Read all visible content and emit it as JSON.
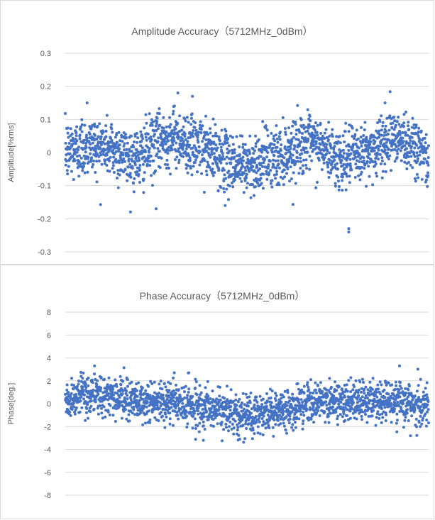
{
  "chart_data": [
    {
      "type": "scatter",
      "title": "Amplitude Accuracy（5712MHz_0dBm）",
      "xlabel": "",
      "ylabel": "Amplitude[%rms]",
      "ylim": [
        -0.3,
        0.3
      ],
      "yticks": [
        "0.3",
        "0.2",
        "0.1",
        "0",
        "-0.1",
        "-0.2",
        "-0.3"
      ],
      "ytick_values": [
        0.3,
        0.2,
        0.1,
        0,
        -0.1,
        -0.2,
        -0.3
      ],
      "grid": true,
      "legend": "none",
      "color": "#4472c4",
      "point_count": 2000,
      "series": [
        {
          "envelope_x": [
            0,
            0.05,
            0.1,
            0.15,
            0.2,
            0.25,
            0.3,
            0.35,
            0.4,
            0.45,
            0.5,
            0.55,
            0.6,
            0.65,
            0.7,
            0.75,
            0.8,
            0.85,
            0.9,
            0.95,
            1.0
          ],
          "envelope_center": [
            0.0,
            0.02,
            0.02,
            0.0,
            -0.02,
            0.03,
            0.05,
            0.02,
            0.0,
            -0.03,
            -0.04,
            -0.02,
            -0.01,
            0.03,
            0.02,
            -0.02,
            -0.01,
            0.01,
            0.05,
            0.03,
            -0.02
          ],
          "spread": 0.05,
          "extremes": [
            {
              "x": 0.06,
              "y": 0.15
            },
            {
              "x": 0.31,
              "y": 0.18
            },
            {
              "x": 0.35,
              "y": 0.17
            },
            {
              "x": 0.25,
              "y": -0.17
            },
            {
              "x": 0.44,
              "y": -0.16
            },
            {
              "x": 0.78,
              "y": -0.24
            },
            {
              "x": 0.78,
              "y": -0.23
            },
            {
              "x": 0.88,
              "y": 0.15
            }
          ]
        }
      ]
    },
    {
      "type": "scatter",
      "title": "Phase Accuracy（5712MHz_0dBm）",
      "xlabel": "",
      "ylabel": "Phase[deg.]",
      "ylim": [
        -8,
        8
      ],
      "yticks": [
        "8",
        "6",
        "4",
        "2",
        "0",
        "-2",
        "-4",
        "-6",
        "-8"
      ],
      "ytick_values": [
        8,
        6,
        4,
        2,
        0,
        -2,
        -4,
        -6,
        -8
      ],
      "grid": true,
      "legend": "none",
      "color": "#4472c4",
      "point_count": 2000,
      "series": [
        {
          "envelope_x": [
            0,
            0.05,
            0.1,
            0.15,
            0.2,
            0.25,
            0.3,
            0.35,
            0.4,
            0.45,
            0.5,
            0.55,
            0.6,
            0.65,
            0.7,
            0.75,
            0.8,
            0.85,
            0.9,
            0.95,
            1.0
          ],
          "envelope_center": [
            0.3,
            0.6,
            0.8,
            0.5,
            0.2,
            0.0,
            0.1,
            -0.2,
            -0.4,
            -0.7,
            -0.9,
            -0.8,
            -0.5,
            0.0,
            0.1,
            0.2,
            0.0,
            0.2,
            0.4,
            0.1,
            -0.3
          ],
          "spread": 1.0,
          "extremes": [
            {
              "x": 0.08,
              "y": 2.6
            },
            {
              "x": 0.3,
              "y": 2.7
            },
            {
              "x": 0.34,
              "y": 2.7
            },
            {
              "x": 0.38,
              "y": -3.2
            },
            {
              "x": 0.48,
              "y": -3.1
            },
            {
              "x": 0.92,
              "y": 3.3
            },
            {
              "x": 0.95,
              "y": -2.8
            }
          ]
        }
      ]
    }
  ]
}
